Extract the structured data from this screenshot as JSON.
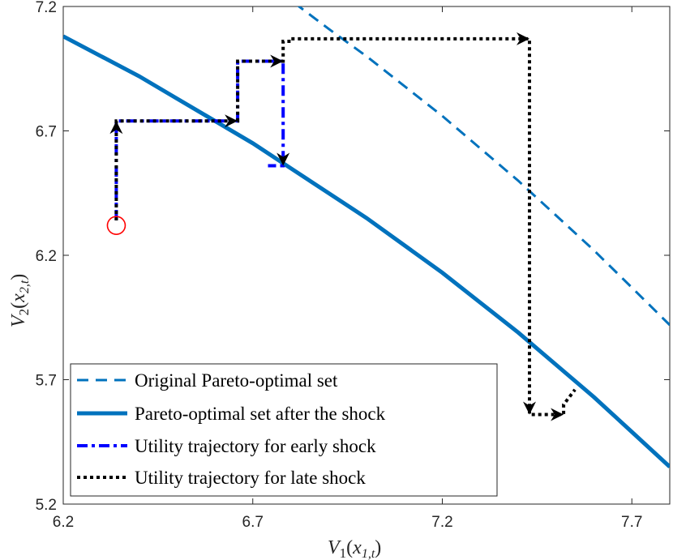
{
  "chart_data": {
    "type": "line",
    "xlabel": "V1(x1,t)",
    "ylabel": "V2(x2,t)",
    "xlim": [
      6.2,
      7.8
    ],
    "ylim": [
      5.2,
      7.2
    ],
    "xticks": [
      6.2,
      6.7,
      7.2,
      7.7
    ],
    "yticks": [
      5.2,
      5.7,
      6.2,
      6.7,
      7.2
    ],
    "xtick_labels": [
      "6.2",
      "6.7",
      "7.2",
      "7.7"
    ],
    "ytick_labels": [
      "5.2",
      "5.7",
      "6.2",
      "6.7",
      "7.2"
    ],
    "grid": false,
    "legend_position": "bottom-left",
    "colors": {
      "original_set": "#0072BD",
      "after_shock_set": "#0072BD",
      "early": "#0000FF",
      "late": "#000000",
      "start_marker": "#FF0000"
    },
    "series": [
      {
        "name": "Original Pareto-optimal set",
        "style": "dashed",
        "x": [
          6.77,
          6.9,
          7.0,
          7.1,
          7.2,
          7.3,
          7.4,
          7.5,
          7.6,
          7.7,
          7.8
        ],
        "y": [
          7.26,
          7.11,
          7.0,
          6.88,
          6.76,
          6.63,
          6.5,
          6.36,
          6.22,
          6.07,
          5.92
        ]
      },
      {
        "name": "Pareto-optimal set after the shock",
        "style": "solid",
        "x": [
          6.2,
          6.3,
          6.4,
          6.5,
          6.6,
          6.7,
          6.8,
          6.9,
          7.0,
          7.1,
          7.2,
          7.3,
          7.4,
          7.5,
          7.6,
          7.7,
          7.8
        ],
        "y": [
          7.08,
          7.0,
          6.92,
          6.83,
          6.74,
          6.65,
          6.55,
          6.45,
          6.35,
          6.24,
          6.13,
          6.01,
          5.89,
          5.76,
          5.63,
          5.49,
          5.35
        ]
      },
      {
        "name": "Utility trajectory for early shock",
        "style": "dashdot",
        "x": [
          6.34,
          6.34,
          6.66,
          6.66,
          6.78,
          6.78,
          6.74
        ],
        "y": [
          6.34,
          6.74,
          6.74,
          6.98,
          6.98,
          6.56,
          6.56
        ]
      },
      {
        "name": "Utility trajectory for late shock",
        "style": "dotted",
        "x": [
          6.34,
          6.34,
          6.66,
          6.66,
          6.78,
          6.78,
          6.8,
          6.8,
          6.84,
          7.43,
          7.43,
          7.52,
          7.52,
          7.55
        ],
        "y": [
          6.34,
          6.74,
          6.74,
          6.98,
          6.98,
          7.06,
          7.06,
          7.07,
          7.07,
          7.07,
          5.56,
          5.56,
          5.6,
          5.66
        ]
      }
    ],
    "start_point": {
      "x": 6.34,
      "y": 6.32,
      "marker": "circle"
    },
    "arrows": [
      {
        "x": 6.34,
        "y": 6.74,
        "dir": "up"
      },
      {
        "x": 6.66,
        "y": 6.74,
        "dir": "right"
      },
      {
        "x": 6.78,
        "y": 6.98,
        "dir": "right"
      },
      {
        "x": 6.78,
        "y": 6.56,
        "dir": "down"
      },
      {
        "x": 7.43,
        "y": 7.07,
        "dir": "right"
      },
      {
        "x": 7.43,
        "y": 5.56,
        "dir": "down"
      },
      {
        "x": 7.52,
        "y": 5.56,
        "dir": "right"
      }
    ],
    "legend": [
      "Original Pareto-optimal set",
      "Pareto-optimal set after the shock",
      "Utility trajectory for early shock",
      "Utility trajectory for late shock"
    ]
  }
}
